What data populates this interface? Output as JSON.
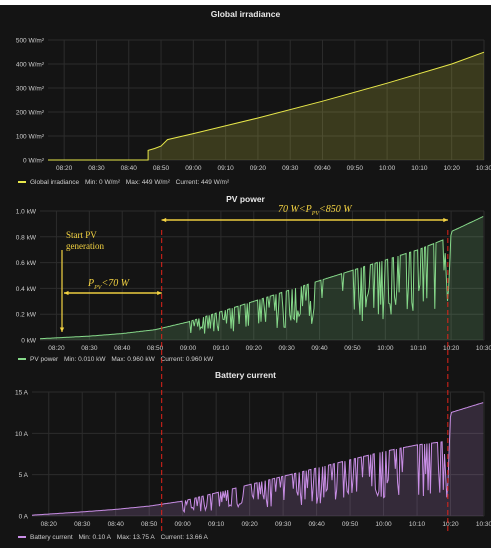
{
  "chart_data": [
    {
      "type": "area",
      "title": "Global irradiance",
      "color": "#e8e84a",
      "ylim": [
        0,
        500
      ],
      "yticks": [
        0,
        100,
        200,
        300,
        400,
        500
      ],
      "ytick_labels": [
        "0 W/m²",
        "100 W/m²",
        "200 W/m²",
        "300 W/m²",
        "400 W/m²",
        "500 W/m²"
      ],
      "xticks": [
        "08:20",
        "08:30",
        "08:40",
        "08:50",
        "09:00",
        "09:10",
        "09:20",
        "09:30",
        "09:40",
        "09:50",
        "10:00",
        "10:10",
        "10:20",
        "10:30"
      ],
      "xrange": [
        "08:15",
        "10:30"
      ],
      "series": [
        {
          "name": "Global irradiance",
          "x": [
            "08:15",
            "08:46",
            "08:46",
            "08:48",
            "08:50",
            "08:52",
            "09:00",
            "09:20",
            "09:40",
            "10:00",
            "10:20",
            "10:30"
          ],
          "y": [
            0,
            0,
            40,
            48,
            58,
            85,
            110,
            175,
            245,
            320,
            400,
            449
          ]
        }
      ],
      "legend": {
        "name": "Global irradiance",
        "min": "Min: 0 W/m²",
        "max": "Max: 449 W/m²",
        "current": "Current: 449 W/m²"
      },
      "legend_position": "bottom-left",
      "grid": true
    },
    {
      "type": "area",
      "title": "PV power",
      "color": "#86d98a",
      "ylim": [
        0,
        1.0
      ],
      "yticks": [
        0,
        0.2,
        0.4,
        0.6,
        0.8,
        1.0
      ],
      "ytick_labels": [
        "0 kW",
        "0.2 kW",
        "0.4 kW",
        "0.6 kW",
        "0.8 kW",
        "1.0 kW"
      ],
      "xticks": [
        "08:20",
        "08:30",
        "08:40",
        "08:50",
        "09:00",
        "09:10",
        "09:20",
        "09:30",
        "09:40",
        "09:50",
        "10:00",
        "10:10",
        "10:20",
        "10:30"
      ],
      "xrange": [
        "08:15",
        "10:30"
      ],
      "series": [
        {
          "name": "PV power",
          "x": [
            "08:15",
            "08:30",
            "08:40",
            "08:50",
            "09:00",
            "09:10",
            "09:20",
            "09:30",
            "09:40",
            "09:50",
            "10:00",
            "10:10",
            "10:18",
            "10:19",
            "10:20",
            "10:30"
          ],
          "y": [
            0.01,
            0.03,
            0.05,
            0.08,
            0.14,
            0.22,
            0.3,
            0.38,
            0.46,
            0.54,
            0.62,
            0.7,
            0.78,
            0.25,
            0.84,
            0.96
          ],
          "dips": true
        }
      ],
      "legend": {
        "name": "PV power",
        "min": "Min: 0.010 kW",
        "max": "Max: 0.960 kW",
        "current": "Current: 0.960 kW"
      },
      "legend_position": "bottom-left",
      "grid": true
    },
    {
      "type": "area",
      "title": "Battery current",
      "color": "#c98ee6",
      "ylim": [
        0,
        15
      ],
      "yticks": [
        0,
        5,
        10,
        15
      ],
      "ytick_labels": [
        "0 A",
        "5 A",
        "10 A",
        "15 A"
      ],
      "xticks": [
        "08:20",
        "08:30",
        "08:40",
        "08:50",
        "09:00",
        "09:10",
        "09:20",
        "09:30",
        "09:40",
        "09:50",
        "10:00",
        "10:10",
        "10:20",
        "10:30"
      ],
      "xrange": [
        "08:15",
        "10:30"
      ],
      "series": [
        {
          "name": "Battery current",
          "x": [
            "08:15",
            "08:30",
            "08:40",
            "08:50",
            "09:00",
            "09:10",
            "09:20",
            "09:30",
            "09:40",
            "09:50",
            "10:00",
            "10:10",
            "10:18",
            "10:19",
            "10:20",
            "10:30"
          ],
          "y": [
            0.1,
            0.5,
            0.8,
            1.2,
            1.8,
            2.8,
            3.8,
            4.8,
            5.8,
            6.8,
            7.8,
            8.6,
            9.0,
            1.5,
            12.5,
            13.75
          ],
          "dips": true
        }
      ],
      "legend": {
        "name": "Battery current",
        "min": "Min: 0.10 A",
        "max": "Max: 13.75 A",
        "current": "Current: 13.66 A"
      },
      "legend_position": "bottom-left",
      "grid": true
    }
  ],
  "markers": {
    "red_dashed_lines_at": [
      "08:52",
      "10:19"
    ],
    "color": "#e0241b"
  },
  "annotations": {
    "start_pv": "Start PV\ngeneration",
    "low_range_prefix": "P",
    "low_range_sub": "PV",
    "low_range_suffix": "<70 W",
    "high_range_prefix": "70 W<P",
    "high_range_sub": "PV",
    "high_range_suffix": "<850 W",
    "color": "#f5d442"
  }
}
